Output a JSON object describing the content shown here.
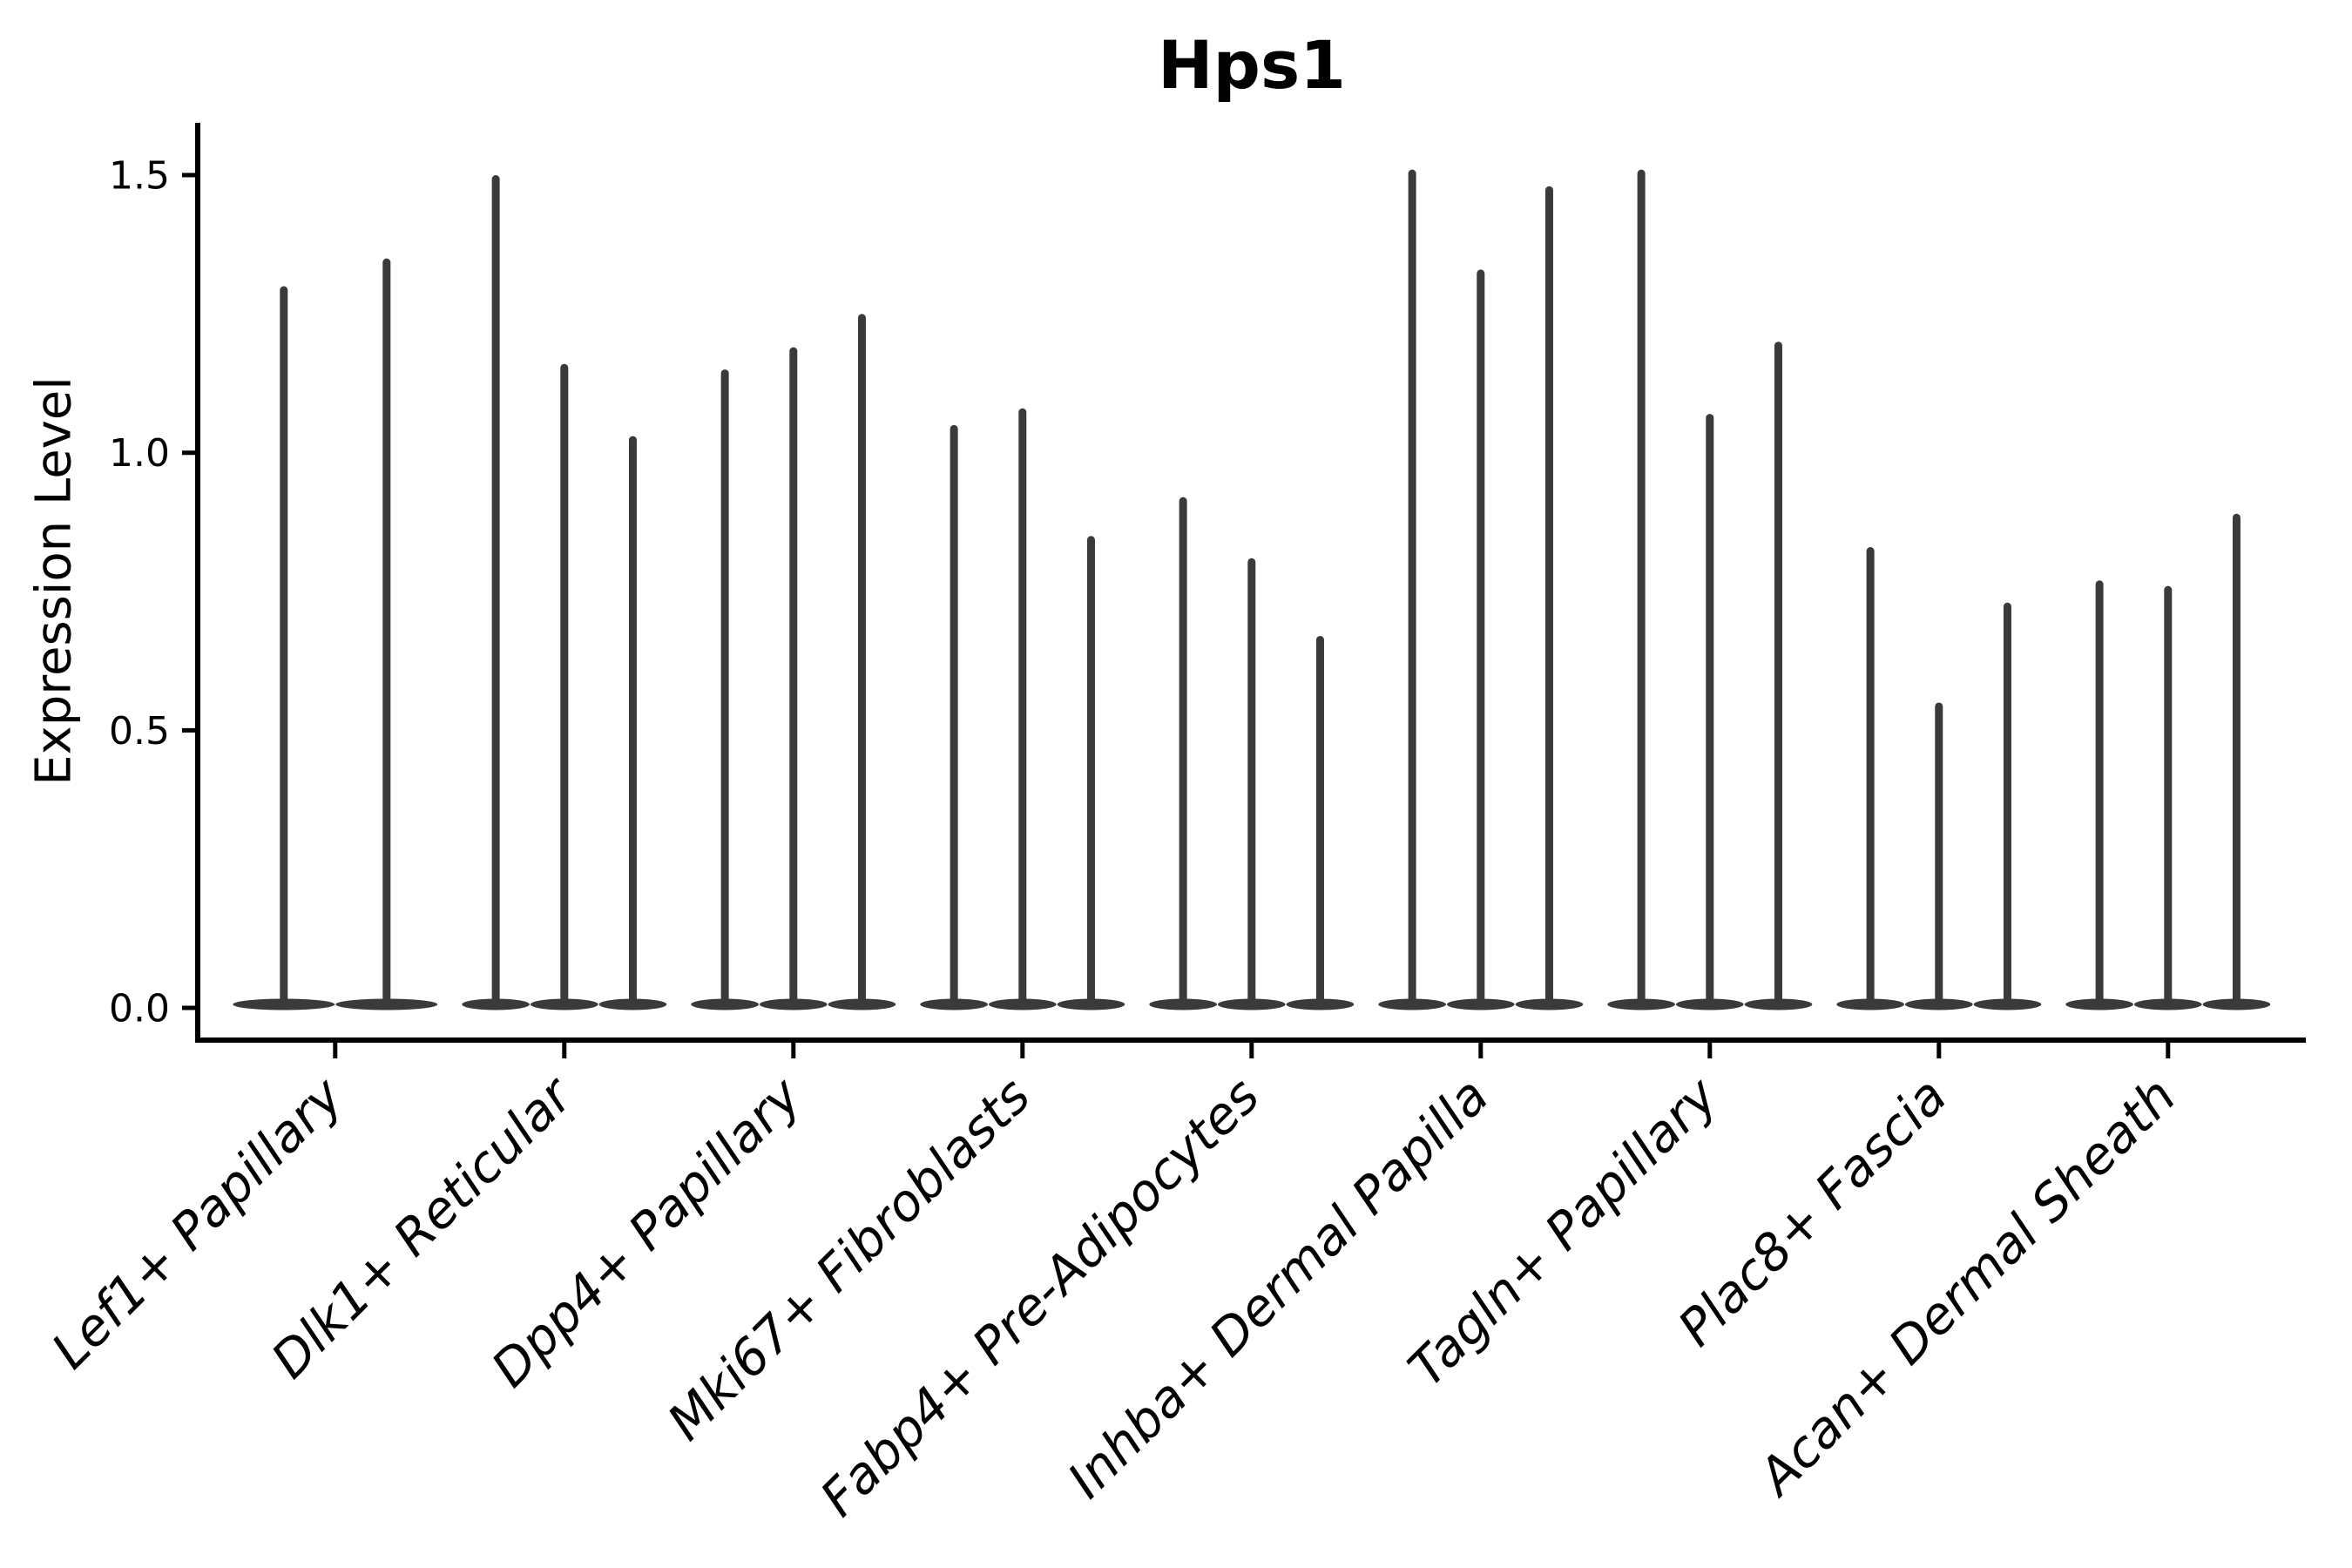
{
  "chart_data": {
    "type": "violin",
    "title": "Hps1",
    "ylabel": "Expression Level",
    "xlabel": "",
    "ylim": [
      0,
      1.59
    ],
    "yticks": [
      "0.0",
      "0.5",
      "1.0",
      "1.5"
    ],
    "ytick_values": [
      0.0,
      0.5,
      1.0,
      1.5
    ],
    "grid": false,
    "legend_position": "none",
    "x_label_angle": 45,
    "x_label_style": "italic",
    "violin_color": "#3a3a3a",
    "axis_color": "#000000",
    "categories": [
      "Lef1+ Papillary",
      "Dlk1+ Reticular",
      "Dpp4+ Papillary",
      "Mki67+ Fibroblasts",
      "Fabp4+ Pre-Adipocytes",
      "Inhba+ Dermal Papilla",
      "Tagln+ Papillary",
      "Plac8+ Fascia",
      "Acan+ Dermal Sheath"
    ],
    "groups": [
      {
        "category": "Lef1+ Papillary",
        "violin_maxima": [
          1.3,
          1.35
        ]
      },
      {
        "category": "Dlk1+ Reticular",
        "violin_maxima": [
          1.5,
          1.16,
          1.03
        ]
      },
      {
        "category": "Dpp4+ Papillary",
        "violin_maxima": [
          1.15,
          1.19,
          1.25
        ]
      },
      {
        "category": "Mki67+ Fibroblasts",
        "violin_maxima": [
          1.05,
          1.08,
          0.85
        ]
      },
      {
        "category": "Fabp4+ Pre-Adipocytes",
        "violin_maxima": [
          0.92,
          0.81,
          0.67
        ]
      },
      {
        "category": "Inhba+ Dermal Papilla",
        "violin_maxima": [
          1.51,
          1.33,
          1.48
        ]
      },
      {
        "category": "Tagln+ Papillary",
        "violin_maxima": [
          1.51,
          1.07,
          1.2
        ]
      },
      {
        "category": "Plac8+ Fascia",
        "violin_maxima": [
          0.83,
          0.55,
          0.73
        ]
      },
      {
        "category": "Acan+ Dermal Sheath",
        "violin_maxima": [
          0.77,
          0.76,
          0.89
        ]
      }
    ],
    "description": "Violin plot of expression level per fibroblast subpopulation; each category contains thin spike-shaped violins with a flat dense base at 0."
  }
}
